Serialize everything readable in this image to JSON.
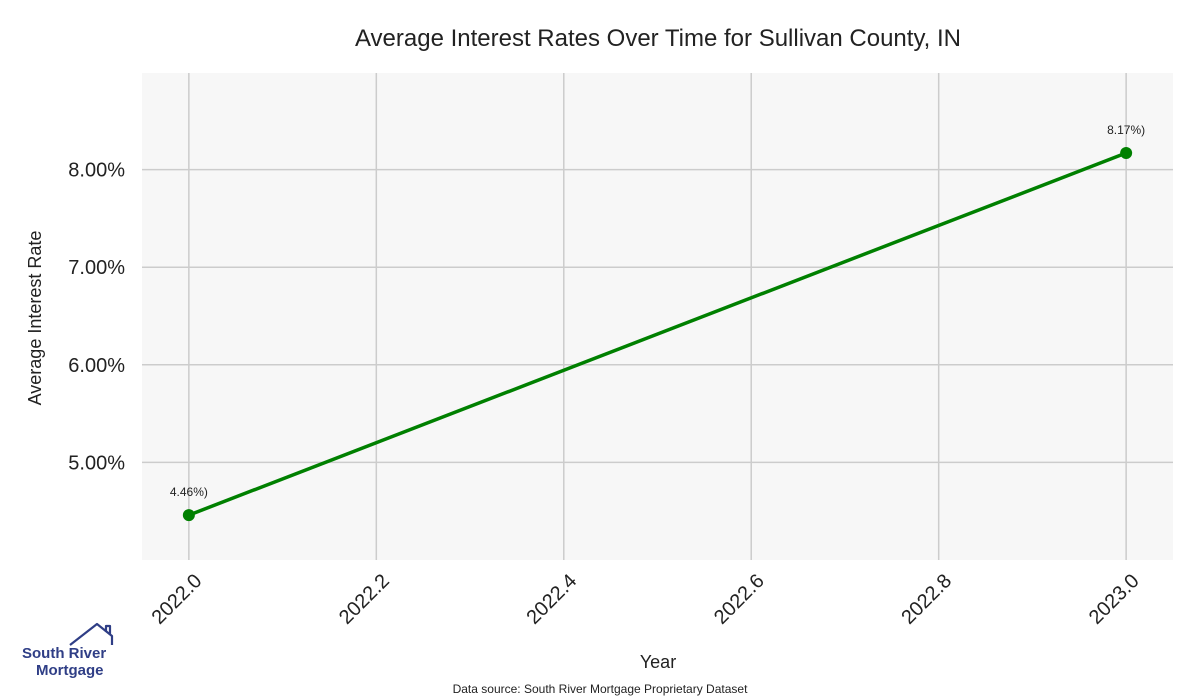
{
  "chart_data": {
    "type": "line",
    "title": "Average Interest Rates Over Time for Sullivan County, IN",
    "xlabel": "Year",
    "ylabel": "Average Interest Rate",
    "x": [
      2022.0,
      2023.0
    ],
    "series": [
      {
        "values": [
          4.46,
          8.17
        ],
        "labels": [
          "4.46%)",
          "8.17%)"
        ]
      }
    ],
    "xlim": [
      2021.95,
      2023.05
    ],
    "ylim": [
      4.0,
      8.99
    ],
    "xticks": [
      2022.0,
      2022.2,
      2022.4,
      2022.6,
      2022.8,
      2023.0
    ],
    "xtick_labels": [
      "2022.0",
      "2022.2",
      "2022.4",
      "2022.6",
      "2022.8",
      "2023.0"
    ],
    "yticks": [
      5,
      6,
      7,
      8
    ],
    "ytick_labels": [
      "5.00%",
      "6.00%",
      "7.00%",
      "8.00%"
    ],
    "grid": true,
    "colors": {
      "line": "#008000",
      "plot_bg": "#f7f7f7",
      "grid": "#cccccc"
    }
  },
  "footer": {
    "source": "Data source: South River Mortgage Proprietary Dataset"
  },
  "logo": {
    "line1": "South River",
    "line2": "Mortgage",
    "icon": "house-roof-icon"
  }
}
